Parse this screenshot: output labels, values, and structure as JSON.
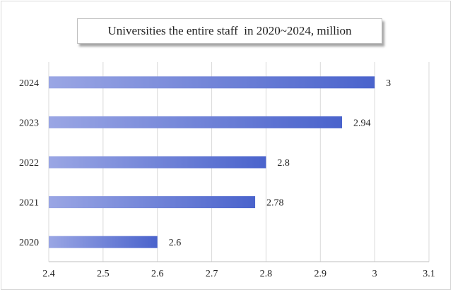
{
  "chart_data": {
    "type": "bar",
    "orientation": "horizontal",
    "title": "Universities the entire staff  in 2020~2024, million",
    "categories": [
      "2020",
      "2021",
      "2022",
      "2023",
      "2024"
    ],
    "values": [
      2.6,
      2.78,
      2.8,
      2.94,
      3
    ],
    "value_labels": [
      "2.6",
      "2.78",
      "2.8",
      "2.94",
      "3"
    ],
    "xlim": [
      2.4,
      3.1
    ],
    "x_ticks": [
      "2.4",
      "2.5",
      "2.6",
      "2.7",
      "2.8",
      "2.9",
      "3",
      "3.1"
    ],
    "xlabel": "",
    "ylabel": "",
    "grid": "vertical",
    "legend": "none",
    "colors": {
      "bar_start": "#9aa6e4",
      "bar_end": "#4a63cc",
      "grid": "#d9d9d9",
      "axis": "#bfbfbf"
    }
  }
}
